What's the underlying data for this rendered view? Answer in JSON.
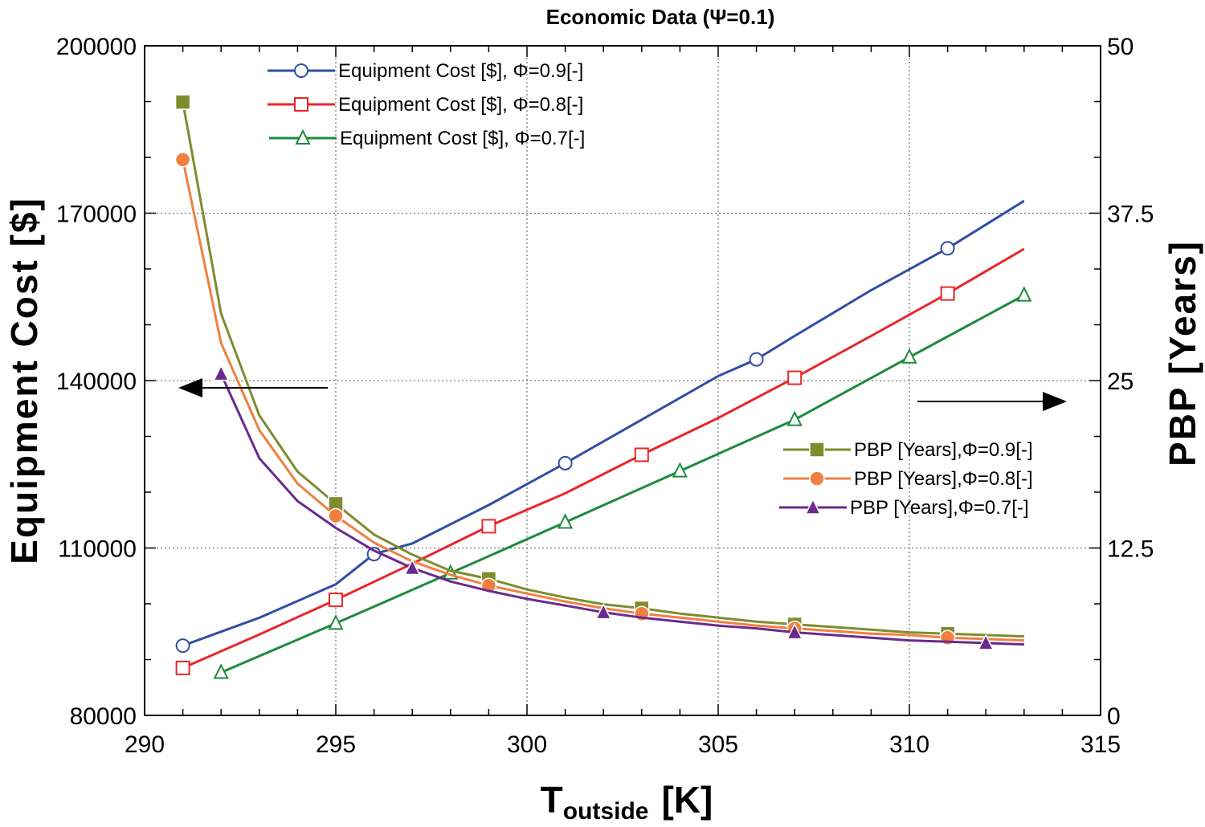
{
  "chart_data": {
    "type": "line",
    "title": "Economic Data (Ψ=0.1)",
    "xlabel": {
      "main": "T",
      "sub": "outside",
      "unit": "[K]"
    },
    "ylabel_left": "Equipment Cost [$]",
    "ylabel_right": "PBP [Years]",
    "xlim": [
      290,
      315
    ],
    "ylim_left": [
      80000,
      200000
    ],
    "ylim_right": [
      0,
      50
    ],
    "x_ticks": [
      "290",
      "295",
      "300",
      "305",
      "310",
      "315"
    ],
    "y_left_ticks": [
      "80000",
      "110000",
      "140000",
      "170000",
      "200000"
    ],
    "y_right_ticks": [
      "0",
      "12.5",
      "25",
      "37.5",
      "50"
    ],
    "x_tick_values": [
      290,
      295,
      300,
      305,
      310,
      315
    ],
    "y_left_tick_values": [
      80000,
      110000,
      140000,
      170000,
      200000
    ],
    "y_right_tick_values": [
      0,
      12.5,
      25,
      37.5,
      50
    ],
    "grid": true,
    "arrows": [
      {
        "points_to": "left axis",
        "location": "left",
        "at_y": 139000
      },
      {
        "points_to": "right axis",
        "location": "right",
        "at_y": 23.5
      }
    ],
    "series_left": [
      {
        "name": "Equipment Cost [$], Φ=0.9[-]",
        "color": "#2f4fa2",
        "marker": "circle-open",
        "x": [
          291,
          293,
          295,
          296,
          297,
          299,
          301,
          303,
          305,
          306,
          307,
          309,
          311,
          313
        ],
        "y": [
          92500,
          97500,
          103500,
          108900,
          110800,
          117700,
          125200,
          133000,
          140800,
          143800,
          148000,
          156200,
          163700,
          172200
        ]
      },
      {
        "name": "Equipment Cost [$], Φ=0.8[-]",
        "color": "#e8272a",
        "marker": "square-open",
        "x": [
          291,
          293,
          295,
          297,
          299,
          301,
          303,
          305,
          307,
          309,
          311,
          313
        ],
        "y": [
          88500,
          94500,
          100700,
          107200,
          113900,
          119800,
          126700,
          133300,
          140500,
          148000,
          155600,
          163600
        ]
      },
      {
        "name": "Equipment Cost [$], Φ=0.7[-]",
        "color": "#1e8a3c",
        "marker": "triangle-open",
        "x": [
          292,
          295,
          298,
          301,
          304,
          307,
          310,
          313
        ],
        "y": [
          87700,
          96500,
          105500,
          114600,
          123800,
          133000,
          144200,
          155300
        ]
      },
      {
        "name": "PBP [Years],Φ=0.9[-]",
        "color": "#7f8c2e",
        "marker": "square-filled",
        "axis": "right",
        "x": [
          291,
          292,
          293,
          294,
          295,
          296,
          297,
          298,
          299,
          300,
          301,
          302,
          303,
          304,
          305,
          306,
          307,
          308,
          309,
          310,
          311,
          312,
          313
        ],
        "y": [
          45.8,
          30,
          22.4,
          18.2,
          15.8,
          13.5,
          12,
          10.8,
          10.2,
          9.4,
          8.8,
          8.3,
          8,
          7.6,
          7.3,
          7,
          6.8,
          6.6,
          6.4,
          6.2,
          6.1,
          6,
          5.9
        ]
      },
      {
        "name": "PBP [Years],Φ=0.8[-]",
        "color": "#f08040",
        "marker": "circle-filled",
        "axis": "right",
        "x": [
          291,
          292,
          293,
          294,
          295,
          296,
          297,
          298,
          299,
          300,
          301,
          302,
          303,
          304,
          305,
          306,
          307,
          308,
          309,
          310,
          311,
          312,
          313
        ],
        "y": [
          41.5,
          27.8,
          21.3,
          17.3,
          14.9,
          12.9,
          11.5,
          10.5,
          9.7,
          9.1,
          8.5,
          8,
          7.6,
          7.3,
          7,
          6.7,
          6.5,
          6.3,
          6.1,
          6,
          5.8,
          5.7,
          5.6
        ]
      },
      {
        "name": "PBP [Years],Φ=0.7[-]",
        "color": "#6b2a8c",
        "marker": "triangle-filled",
        "axis": "right",
        "x": [
          292,
          293,
          294,
          295,
          296,
          297,
          298,
          299,
          300,
          301,
          302,
          303,
          304,
          305,
          306,
          307,
          308,
          309,
          310,
          311,
          312,
          313
        ],
        "y": [
          25.5,
          19.2,
          16,
          14,
          12.3,
          11,
          10,
          9.3,
          8.7,
          8.2,
          7.7,
          7.3,
          7,
          6.7,
          6.5,
          6.2,
          6,
          5.8,
          5.6,
          5.5,
          5.4,
          5.3
        ]
      }
    ],
    "marker_x": [
      [
        291,
        296,
        301,
        306,
        311
      ],
      [
        291,
        295,
        299,
        303,
        307,
        311
      ],
      [
        292,
        295,
        298,
        301,
        304,
        307,
        310,
        313
      ],
      [
        291,
        295,
        299,
        303,
        307,
        311
      ],
      [
        291,
        295,
        299,
        303,
        307,
        311
      ],
      [
        292,
        297,
        302,
        307,
        312
      ]
    ]
  }
}
